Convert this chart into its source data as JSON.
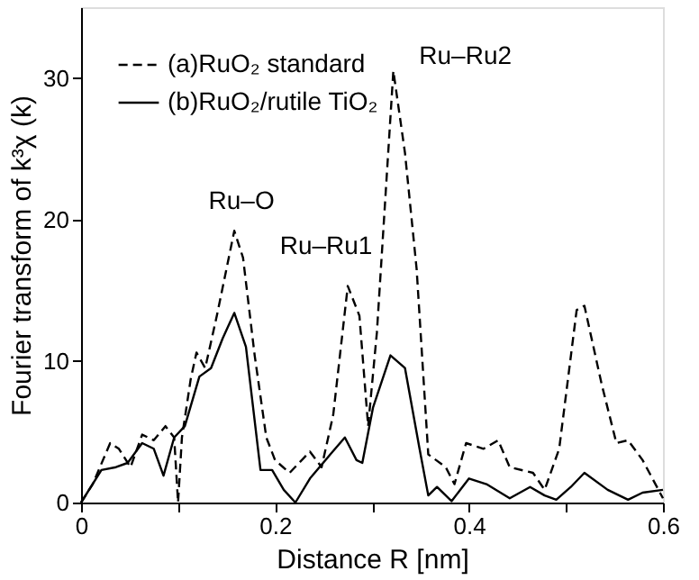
{
  "chart_data": {
    "type": "line",
    "xlabel": "Distance  R [nm]",
    "ylabel": "Fourier transform of k³χ (k)",
    "xlim": [
      0,
      0.6
    ],
    "ylim": [
      0,
      35
    ],
    "xticks": [
      0,
      {
        "value": 0.1,
        "label": null
      },
      0.2,
      {
        "value": 0.3,
        "label": null
      },
      0.4,
      {
        "value": 0.5,
        "label": null
      },
      0.6
    ],
    "yticks": [
      0,
      10,
      20,
      30
    ],
    "grid": false,
    "legend": "top left",
    "marker": "none",
    "series": [
      {
        "name": "(a)RuO₂  standard",
        "color": "#000000",
        "line_style": "dashed",
        "x": [
          0,
          0.012,
          0.03,
          0.039,
          0.051,
          0.063,
          0.075,
          0.087,
          0.096,
          0.1,
          0.104,
          0.113,
          0.119,
          0.128,
          0.14,
          0.158,
          0.167,
          0.179,
          0.191,
          0.2,
          0.215,
          0.236,
          0.248,
          0.26,
          0.275,
          0.287,
          0.296,
          0.305,
          0.322,
          0.334,
          0.346,
          0.358,
          0.376,
          0.385,
          0.397,
          0.415,
          0.43,
          0.442,
          0.466,
          0.478,
          0.493,
          0.511,
          0.519,
          0.537,
          0.552,
          0.564,
          0.579,
          0.6
        ],
        "values": [
          0,
          1.3,
          4.2,
          3.8,
          2.5,
          4.8,
          4.4,
          5.4,
          4.6,
          0,
          4.6,
          8.7,
          10.6,
          9.5,
          13.2,
          19.2,
          17.3,
          10.4,
          4.6,
          3.0,
          2.1,
          3.6,
          2.5,
          6.2,
          15.3,
          13.2,
          5.4,
          12,
          30.5,
          24.7,
          16.5,
          3.4,
          2.5,
          1.3,
          4.2,
          3.8,
          4.4,
          2.5,
          2.1,
          0.9,
          3.8,
          13.6,
          13.9,
          8.3,
          4.2,
          4.4,
          3.0,
          0.3
        ]
      },
      {
        "name": "(b)RuO₂/rutile TiO₂",
        "color": "#000000",
        "line_style": "solid",
        "x": [
          0,
          0.021,
          0.036,
          0.048,
          0.063,
          0.075,
          0.085,
          0.096,
          0.107,
          0.122,
          0.134,
          0.146,
          0.158,
          0.17,
          0.185,
          0.197,
          0.209,
          0.221,
          0.236,
          0.257,
          0.272,
          0.284,
          0.29,
          0.301,
          0.319,
          0.334,
          0.349,
          0.358,
          0.367,
          0.382,
          0.4,
          0.418,
          0.442,
          0.463,
          0.478,
          0.49,
          0.505,
          0.519,
          0.543,
          0.564,
          0.579,
          0.6
        ],
        "values": [
          0,
          2.3,
          2.5,
          2.8,
          4.2,
          3.8,
          1.9,
          4.6,
          5.4,
          8.9,
          9.5,
          11.6,
          13.4,
          11,
          2.3,
          2.3,
          0.9,
          0,
          1.7,
          3.4,
          4.6,
          3.0,
          2.8,
          6.7,
          10.4,
          9.5,
          3.8,
          0.5,
          1.1,
          0.1,
          1.7,
          1.3,
          0.3,
          1.1,
          0.5,
          0.2,
          1.1,
          2.1,
          0.9,
          0.2,
          0.7,
          0.9
        ]
      }
    ],
    "annotations": [
      {
        "text": "Ru–O",
        "x": 0.158,
        "y": 19.2
      },
      {
        "text": "Ru–Ru1",
        "x": 0.275,
        "y": 15.3
      },
      {
        "text": "Ru–Ru2",
        "x": 0.322,
        "y": 30.5
      }
    ]
  }
}
